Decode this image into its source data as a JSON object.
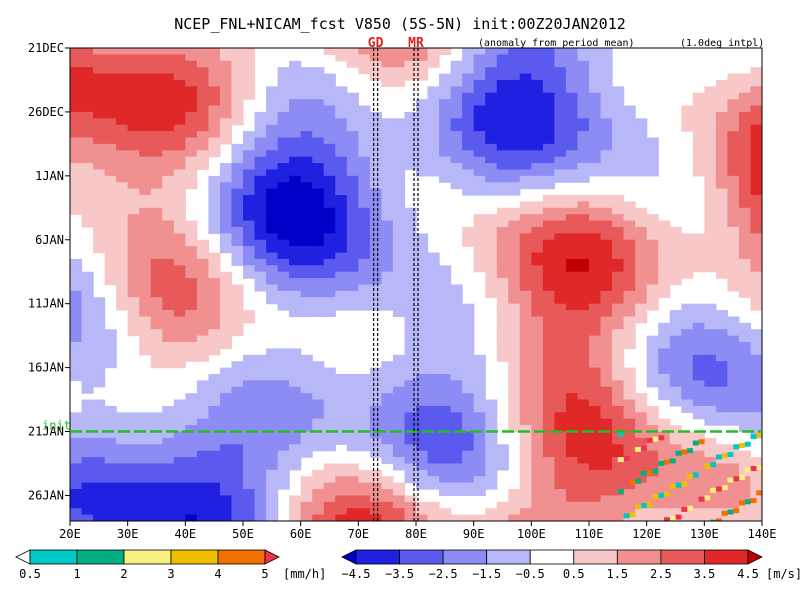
{
  "chart_data": {
    "type": "heatmap",
    "title": "NCEP_FNL+NICAM_fcst V850 (5S-5N) init:00Z20JAN2012",
    "subtitle_left": "(anomaly from period mean)",
    "subtitle_right": "(1.0deg intpl)",
    "x_ticks": [
      "20E",
      "30E",
      "40E",
      "50E",
      "60E",
      "70E",
      "80E",
      "90E",
      "100E",
      "110E",
      "120E",
      "130E",
      "140E"
    ],
    "xlim": [
      20,
      140
    ],
    "y_ticks": [
      "21DEC",
      "26DEC",
      "1JAN",
      "6JAN",
      "11JAN",
      "16JAN",
      "21JAN",
      "26JAN"
    ],
    "ylim_days": [
      0,
      37
    ],
    "markers": [
      {
        "label": "GD",
        "lon": 73
      },
      {
        "label": "MR",
        "lon": 80
      }
    ],
    "init_label": "init",
    "init_day": 30,
    "rain_legend": {
      "levels": [
        "0.5",
        "1",
        "2",
        "3",
        "4",
        "5"
      ],
      "unit": "[mm/h]",
      "colors": [
        "#ffffff",
        "#00c8c8",
        "#00b080",
        "#f8f080",
        "#f0c000",
        "#f07000",
        "#f03050"
      ]
    },
    "wind_legend": {
      "levels": [
        "−4.5",
        "−3.5",
        "−2.5",
        "−1.5",
        "−0.5",
        "0.5",
        "1.5",
        "2.5",
        "3.5",
        "4.5"
      ],
      "unit": "[m/s]",
      "colors": [
        "#0000c8",
        "#2020e0",
        "#5a5aee",
        "#8c8cf4",
        "#b8b8f8",
        "#ffffff",
        "#f8c8c8",
        "#f09090",
        "#e85a5a",
        "#e02828",
        "#c00000"
      ]
    }
  }
}
